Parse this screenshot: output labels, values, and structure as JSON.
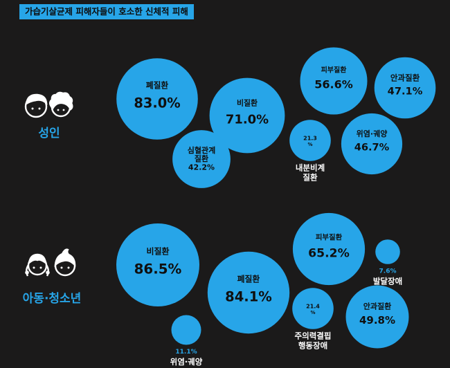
{
  "title": "가습기살균제 피해자들이 호소한 신체적 피해",
  "colors": {
    "background": "#1b1a1a",
    "accent": "#27a5e8",
    "bubble_text": "#0f0f0f",
    "outside_label": "#ffffff",
    "icon": "#ffffff"
  },
  "groups": [
    {
      "label": "성인",
      "icon": "adult-couple-icon"
    },
    {
      "label": "아동·청소년",
      "icon": "child-couple-icon"
    }
  ],
  "chart_data": {
    "type": "bubble",
    "unit": "%",
    "series": [
      {
        "name": "성인",
        "points": [
          {
            "category": "폐질환",
            "value": 83.0
          },
          {
            "category": "비질환",
            "value": 71.0
          },
          {
            "category": "심혈관계 질환",
            "value": 42.2
          },
          {
            "category": "피부질환",
            "value": 56.6
          },
          {
            "category": "안과질환",
            "value": 47.1
          },
          {
            "category": "내분비계 질환",
            "value": 21.3
          },
          {
            "category": "위염·궤양",
            "value": 46.7
          }
        ]
      },
      {
        "name": "아동·청소년",
        "points": [
          {
            "category": "비질환",
            "value": 86.5
          },
          {
            "category": "폐질환",
            "value": 84.1
          },
          {
            "category": "피부질환",
            "value": 65.2
          },
          {
            "category": "발달장애",
            "value": 7.6
          },
          {
            "category": "주의력결핍 행동장애",
            "value": 21.4
          },
          {
            "category": "안과질환",
            "value": 49.8
          },
          {
            "category": "위염·궤양",
            "value": 11.1
          }
        ]
      }
    ]
  }
}
